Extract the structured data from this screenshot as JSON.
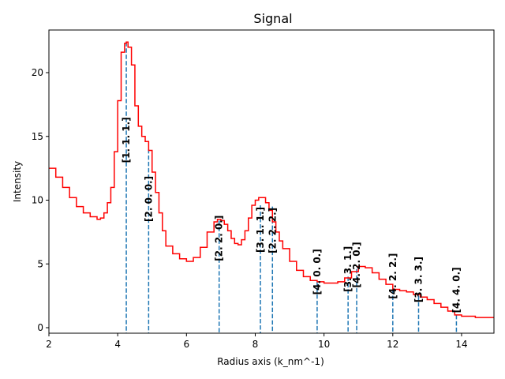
{
  "chart_data": {
    "type": "line",
    "title": "Signal",
    "xlabel": "Radius axis (k_nm^-1)",
    "ylabel": "Intensity",
    "xlim": [
      2,
      15
    ],
    "ylim": [
      -0.4,
      23.5
    ],
    "xticks": [
      2,
      4,
      6,
      8,
      10,
      12,
      14
    ],
    "yticks": [
      0,
      5,
      10,
      15,
      20
    ],
    "grid": false,
    "legend": null,
    "series": [
      {
        "name": "signal",
        "style": "step",
        "color": "#ff0000",
        "x": [
          2.0,
          2.2,
          2.4,
          2.6,
          2.8,
          3.0,
          3.2,
          3.4,
          3.5,
          3.6,
          3.7,
          3.8,
          3.9,
          4.0,
          4.1,
          4.2,
          4.25,
          4.3,
          4.4,
          4.5,
          4.6,
          4.7,
          4.8,
          4.9,
          5.0,
          5.1,
          5.2,
          5.3,
          5.4,
          5.6,
          5.8,
          6.0,
          6.2,
          6.4,
          6.6,
          6.8,
          6.9,
          7.0,
          7.1,
          7.2,
          7.3,
          7.4,
          7.5,
          7.6,
          7.7,
          7.8,
          7.9,
          8.0,
          8.1,
          8.2,
          8.3,
          8.4,
          8.5,
          8.6,
          8.7,
          8.8,
          9.0,
          9.2,
          9.4,
          9.6,
          9.8,
          10.0,
          10.2,
          10.4,
          10.6,
          10.8,
          11.0,
          11.2,
          11.4,
          11.6,
          11.8,
          12.0,
          12.2,
          12.4,
          12.6,
          12.8,
          13.0,
          13.2,
          13.4,
          13.6,
          13.8,
          14.0,
          14.4,
          15.0
        ],
        "y": [
          12.5,
          11.8,
          11.0,
          10.2,
          9.5,
          9.0,
          8.7,
          8.5,
          8.6,
          9.0,
          9.8,
          11.0,
          13.8,
          17.8,
          21.6,
          22.3,
          22.4,
          22.0,
          20.6,
          17.4,
          15.8,
          15.0,
          14.6,
          13.9,
          12.2,
          10.6,
          9.0,
          7.6,
          6.4,
          5.8,
          5.4,
          5.2,
          5.5,
          6.3,
          7.5,
          8.3,
          8.5,
          8.4,
          8.1,
          7.6,
          7.0,
          6.6,
          6.5,
          6.9,
          7.6,
          8.6,
          9.6,
          10.0,
          10.2,
          10.2,
          9.8,
          9.2,
          8.3,
          7.5,
          6.8,
          6.2,
          5.2,
          4.5,
          4.0,
          3.7,
          3.6,
          3.5,
          3.5,
          3.6,
          3.9,
          4.4,
          4.8,
          4.7,
          4.3,
          3.8,
          3.4,
          3.0,
          2.9,
          2.8,
          2.6,
          2.4,
          2.2,
          1.9,
          1.6,
          1.3,
          1.0,
          0.9,
          0.8,
          0.7
        ]
      }
    ],
    "markers": [
      {
        "label": "[1. 1. 1.]",
        "x": 4.25,
        "y": 22.4
      },
      {
        "label": "[2. 0. 0.]",
        "x": 4.9,
        "y": 14.0
      },
      {
        "label": "[2. 2. 0.]",
        "x": 6.95,
        "y": 8.4
      },
      {
        "label": "[3. 1. 1.]",
        "x": 8.15,
        "y": 9.6
      },
      {
        "label": "[2. 2. 2.]",
        "x": 8.5,
        "y": 9.5
      },
      {
        "label": "[4. 0. 0.]",
        "x": 9.8,
        "y": 3.6
      },
      {
        "label": "[3. 3. 1.]",
        "x": 10.7,
        "y": 4.0
      },
      {
        "label": "[4. 2. 0.]",
        "x": 10.95,
        "y": 4.6
      },
      {
        "label": "[4. 2. 2.]",
        "x": 12.0,
        "y": 3.0
      },
      {
        "label": "[3. 3. 3.]",
        "x": 12.75,
        "y": 2.5
      },
      {
        "label": "[4. 4. 0.]",
        "x": 13.85,
        "y": 1.0
      }
    ],
    "marker_color": "#1f77b4"
  }
}
